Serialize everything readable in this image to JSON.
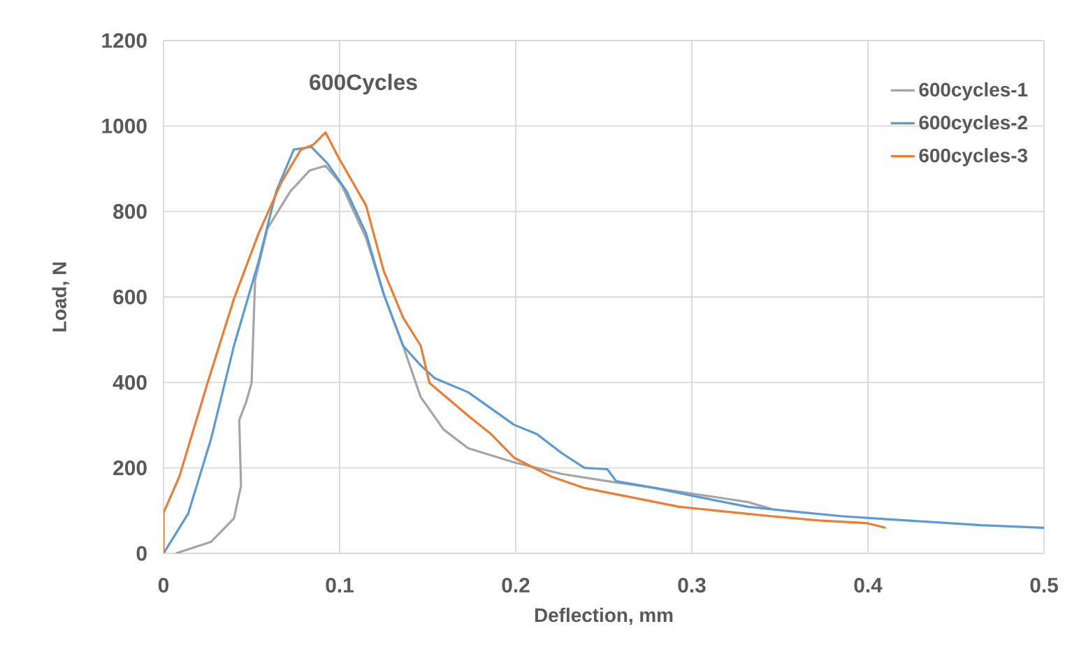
{
  "chart_data": {
    "type": "line",
    "title": "600Cycles",
    "xlabel": "Deflection, mm",
    "ylabel": "Load, N",
    "xlim": [
      0,
      0.5
    ],
    "ylim": [
      0,
      1200
    ],
    "xticks": [
      0,
      0.1,
      0.2,
      0.3,
      0.4,
      0.5
    ],
    "yticks": [
      0,
      200,
      400,
      600,
      800,
      1000,
      1200
    ],
    "grid": true,
    "legend": "top right",
    "marker": "none",
    "line_style": "solid",
    "series": [
      {
        "name": "600cycles-1",
        "color": "#a5a5a5",
        "x": [
          0.007,
          0.027,
          0.04,
          0.044,
          0.043,
          0.047,
          0.05,
          0.052,
          0.059,
          0.072,
          0.083,
          0.092,
          0.101,
          0.115,
          0.125,
          0.136,
          0.146,
          0.159,
          0.173,
          0.199,
          0.226,
          0.252,
          0.279,
          0.305,
          0.332,
          0.345
        ],
        "values": [
          0,
          27,
          82,
          158,
          312,
          355,
          399,
          640,
          760,
          847,
          896,
          907,
          863,
          738,
          607,
          486,
          366,
          290,
          246,
          213,
          186,
          169,
          153,
          137,
          120,
          104
        ]
      },
      {
        "name": "600cycles-2",
        "color": "#5b9bd5",
        "x": [
          0,
          0.014,
          0.027,
          0.04,
          0.054,
          0.064,
          0.074,
          0.084,
          0.093,
          0.104,
          0.115,
          0.125,
          0.136,
          0.146,
          0.154,
          0.173,
          0.199,
          0.212,
          0.226,
          0.239,
          0.252,
          0.257,
          0.279,
          0.305,
          0.332,
          0.358,
          0.385,
          0.411,
          0.438,
          0.464,
          0.5
        ],
        "values": [
          0,
          93,
          268,
          486,
          683,
          847,
          945,
          951,
          913,
          847,
          749,
          607,
          486,
          440,
          410,
          377,
          301,
          279,
          235,
          200,
          197,
          169,
          153,
          131,
          109,
          98,
          87,
          80,
          73,
          66,
          60
        ]
      },
      {
        "name": "600cycles-3",
        "color": "#ed7d31",
        "x": [
          0,
          0,
          0.009,
          0.025,
          0.04,
          0.054,
          0.067,
          0.078,
          0.085,
          0.092,
          0.099,
          0.115,
          0.125,
          0.136,
          0.146,
          0.151,
          0.173,
          0.186,
          0.199,
          0.22,
          0.239,
          0.266,
          0.293,
          0.319,
          0.345,
          0.372,
          0.399,
          0.41
        ],
        "values": [
          0,
          95,
          180,
          399,
          596,
          749,
          869,
          945,
          956,
          985,
          929,
          814,
          661,
          552,
          486,
          399,
          322,
          279,
          224,
          180,
          153,
          131,
          109,
          98,
          87,
          77,
          71,
          60
        ]
      }
    ]
  }
}
